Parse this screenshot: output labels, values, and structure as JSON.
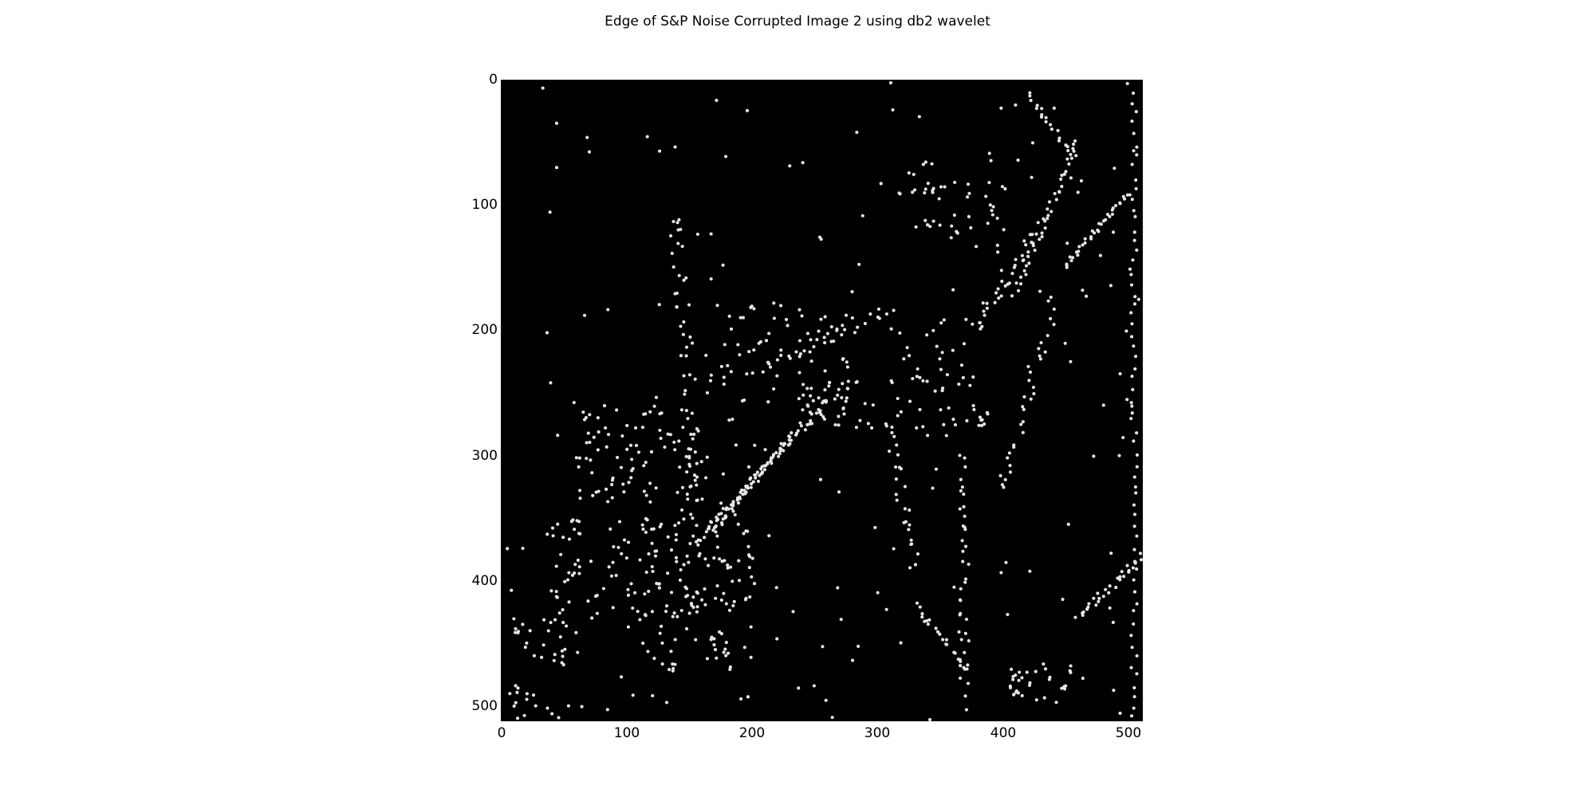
{
  "figure": {
    "title": "Edge of S&P Noise Corrupted Image 2 using db2 wavelet"
  },
  "image": {
    "description_type": "binary edge map, white dots on black",
    "background_color": "#000000",
    "dot_color": "#e6e6e6",
    "width_units": 512,
    "height_units": 512
  },
  "axes": {
    "x_ticks": [
      "0",
      "100",
      "200",
      "300",
      "400",
      "500"
    ],
    "y_ticks": [
      "0",
      "100",
      "200",
      "300",
      "400",
      "500"
    ],
    "x_range": [
      0,
      512
    ],
    "y_range": [
      0,
      512
    ]
  }
}
